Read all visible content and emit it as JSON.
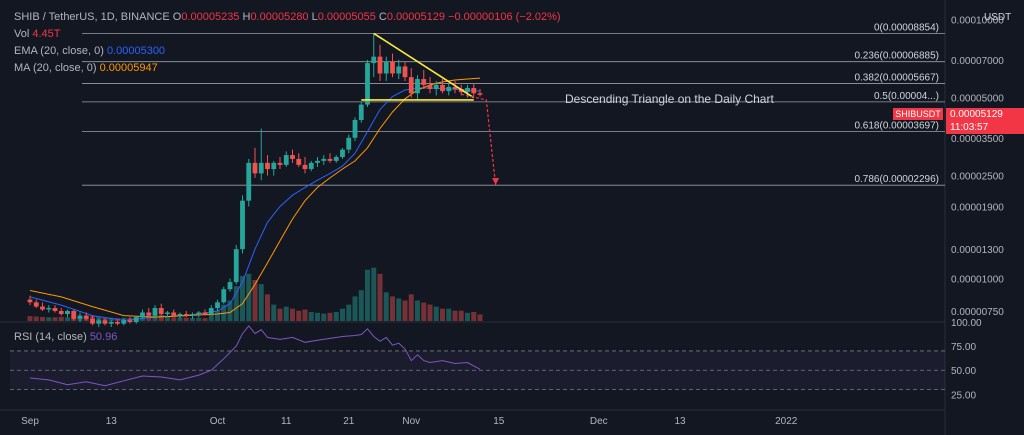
{
  "header": {
    "symbol": "SHIB / TetherUS, 1D, BINANCE",
    "ohlc": [
      {
        "k": "O",
        "v": "0.00005235"
      },
      {
        "k": "H",
        "v": "0.00005280"
      },
      {
        "k": "L",
        "v": "0.00005055"
      },
      {
        "k": "C",
        "v": "0.00005129"
      }
    ],
    "change": "−0.00000106 (−2.02%)",
    "volume_label": "Vol",
    "volume_value": "4.45T",
    "ema_label": "EMA (20, close, 0)",
    "ema_value": "0.00005300",
    "ma_label": "MA (20, close, 0)",
    "ma_value": "0.00005947",
    "rsi_label": "RSI (14, close)",
    "rsi_value": "50.96"
  },
  "currency": "USDT",
  "price_tag": "SHIBUSDT",
  "last_price": "0.00005129",
  "countdown": "11:03:57",
  "annotation": "Descending Triangle on the Daily Chart",
  "colors": {
    "up": "#26a69a",
    "down": "#ef5350",
    "ema": "#2962ff",
    "ma": "#ff9800",
    "rsi": "#7e57c2",
    "triangle": "#ffeb3b",
    "arrow": "#f23645",
    "background": "#131722",
    "fib": "#b2b5be"
  },
  "chart_data": {
    "type": "candlestick",
    "y_scale": "log",
    "price_axis": {
      "ticks": [
        "0.00010000",
        "0.00007000",
        "0.00005000",
        "0.00003500",
        "0.00002500",
        "0.00001900",
        "0.00001300",
        "0.00001000",
        "0.00000750"
      ],
      "values": [
        0.0001,
        7e-05,
        5e-05,
        3.5e-05,
        2.5e-05,
        1.9e-05,
        1.3e-05,
        1e-05,
        7.5e-06
      ]
    },
    "x_axis": {
      "ticks": [
        "Sep",
        "13",
        "Oct",
        "11",
        "21",
        "Nov",
        "15",
        "Dec",
        "13",
        "2022"
      ],
      "positions": [
        0,
        13,
        30,
        41,
        51,
        61,
        75,
        91,
        104,
        121
      ]
    },
    "fibonacci": [
      {
        "label": "0(0.00008854)",
        "level": 0,
        "price": 8.854e-05
      },
      {
        "label": "0.236(0.00006885)",
        "level": 0.236,
        "price": 6.885e-05
      },
      {
        "label": "0.382(0.00005667)",
        "level": 0.382,
        "price": 5.667e-05
      },
      {
        "label": "0.5(0.00004...)",
        "level": 0.5,
        "price": 4.817e-05
      },
      {
        "label": "0.618(0.00003697)",
        "level": 0.618,
        "price": 3.697e-05
      },
      {
        "label": "0.786(0.00002296)",
        "level": 0.786,
        "price": 2.296e-05
      }
    ],
    "candles": [
      {
        "d": 0,
        "o": 8.3e-06,
        "h": 8.6e-06,
        "l": 7.9e-06,
        "c": 8.1e-06,
        "v": 1.2
      },
      {
        "d": 1,
        "o": 8.1e-06,
        "h": 8.3e-06,
        "l": 7.7e-06,
        "c": 7.8e-06,
        "v": 1.1
      },
      {
        "d": 2,
        "o": 7.8e-06,
        "h": 8.1e-06,
        "l": 7.5e-06,
        "c": 7.6e-06,
        "v": 1.0
      },
      {
        "d": 3,
        "o": 7.6e-06,
        "h": 7.9e-06,
        "l": 7.4e-06,
        "c": 7.7e-06,
        "v": 0.9
      },
      {
        "d": 4,
        "o": 7.7e-06,
        "h": 7.9e-06,
        "l": 7.4e-06,
        "c": 7.5e-06,
        "v": 0.9
      },
      {
        "d": 5,
        "o": 7.5e-06,
        "h": 7.7e-06,
        "l": 7.2e-06,
        "c": 7.3e-06,
        "v": 1.0
      },
      {
        "d": 6,
        "o": 7.3e-06,
        "h": 7.6e-06,
        "l": 7.1e-06,
        "c": 7.5e-06,
        "v": 0.9
      },
      {
        "d": 7,
        "o": 7.5e-06,
        "h": 7.6e-06,
        "l": 6.9e-06,
        "c": 7e-06,
        "v": 1.2
      },
      {
        "d": 8,
        "o": 7e-06,
        "h": 7.4e-06,
        "l": 6.8e-06,
        "c": 7.2e-06,
        "v": 1.0
      },
      {
        "d": 9,
        "o": 7.2e-06,
        "h": 7.4e-06,
        "l": 6.9e-06,
        "c": 7e-06,
        "v": 0.8
      },
      {
        "d": 10,
        "o": 7e-06,
        "h": 7.2e-06,
        "l": 6.6e-06,
        "c": 6.7e-06,
        "v": 1.3
      },
      {
        "d": 11,
        "o": 6.7e-06,
        "h": 7e-06,
        "l": 6.5e-06,
        "c": 6.9e-06,
        "v": 1.0
      },
      {
        "d": 12,
        "o": 6.9e-06,
        "h": 7e-06,
        "l": 6.6e-06,
        "c": 6.7e-06,
        "v": 0.8
      },
      {
        "d": 13,
        "o": 6.7e-06,
        "h": 6.9e-06,
        "l": 6.5e-06,
        "c": 6.8e-06,
        "v": 0.8
      },
      {
        "d": 14,
        "o": 6.8e-06,
        "h": 6.9e-06,
        "l": 6.6e-06,
        "c": 6.7e-06,
        "v": 0.7
      },
      {
        "d": 15,
        "o": 6.7e-06,
        "h": 7e-06,
        "l": 6.6e-06,
        "c": 6.9e-06,
        "v": 0.8
      },
      {
        "d": 16,
        "o": 6.9e-06,
        "h": 7.1e-06,
        "l": 6.7e-06,
        "c": 6.8e-06,
        "v": 0.7
      },
      {
        "d": 17,
        "o": 6.8e-06,
        "h": 7.2e-06,
        "l": 6.7e-06,
        "c": 7.1e-06,
        "v": 1.0
      },
      {
        "d": 18,
        "o": 7.1e-06,
        "h": 7.6e-06,
        "l": 7e-06,
        "c": 7.4e-06,
        "v": 1.4
      },
      {
        "d": 19,
        "o": 7.4e-06,
        "h": 7.7e-06,
        "l": 7.1e-06,
        "c": 7.2e-06,
        "v": 1.3
      },
      {
        "d": 20,
        "o": 7.2e-06,
        "h": 7.9e-06,
        "l": 7.1e-06,
        "c": 7.7e-06,
        "v": 1.8
      },
      {
        "d": 21,
        "o": 7.7e-06,
        "h": 8e-06,
        "l": 7.2e-06,
        "c": 7.3e-06,
        "v": 1.5
      },
      {
        "d": 22,
        "o": 7.3e-06,
        "h": 7.5e-06,
        "l": 7.1e-06,
        "c": 7.4e-06,
        "v": 1.0
      },
      {
        "d": 23,
        "o": 7.4e-06,
        "h": 7.6e-06,
        "l": 7.1e-06,
        "c": 7.2e-06,
        "v": 0.9
      },
      {
        "d": 24,
        "o": 7.2e-06,
        "h": 7.4e-06,
        "l": 7e-06,
        "c": 7.3e-06,
        "v": 0.8
      },
      {
        "d": 25,
        "o": 7.3e-06,
        "h": 7.5e-06,
        "l": 7.1e-06,
        "c": 7.2e-06,
        "v": 0.8
      },
      {
        "d": 26,
        "o": 7.2e-06,
        "h": 7.4e-06,
        "l": 7e-06,
        "c": 7.3e-06,
        "v": 0.7
      },
      {
        "d": 27,
        "o": 7.3e-06,
        "h": 7.5e-06,
        "l": 7.1e-06,
        "c": 7.4e-06,
        "v": 0.8
      },
      {
        "d": 28,
        "o": 7.4e-06,
        "h": 7.6e-06,
        "l": 7.2e-06,
        "c": 7.3e-06,
        "v": 0.7
      },
      {
        "d": 29,
        "o": 7.3e-06,
        "h": 7.9e-06,
        "l": 7.2e-06,
        "c": 7.7e-06,
        "v": 1.5
      },
      {
        "d": 30,
        "o": 7.7e-06,
        "h": 8.3e-06,
        "l": 7.5e-06,
        "c": 8.1e-06,
        "v": 2.5
      },
      {
        "d": 31,
        "o": 8.1e-06,
        "h": 9.3e-06,
        "l": 8e-06,
        "c": 9.1e-06,
        "v": 4.0
      },
      {
        "d": 32,
        "o": 9.1e-06,
        "h": 1e-05,
        "l": 8.9e-06,
        "c": 9.7e-06,
        "v": 5.0
      },
      {
        "d": 33,
        "o": 9.7e-06,
        "h": 1.35e-05,
        "l": 9.5e-06,
        "c": 1.3e-05,
        "v": 8.5
      },
      {
        "d": 34,
        "o": 1.3e-05,
        "h": 2.1e-05,
        "l": 1.25e-05,
        "c": 2e-05,
        "v": 11.0
      },
      {
        "d": 35,
        "o": 2e-05,
        "h": 2.9e-05,
        "l": 1.9e-05,
        "c": 2.8e-05,
        "v": 11.5
      },
      {
        "d": 36,
        "o": 2.8e-05,
        "h": 3.2e-05,
        "l": 2.45e-05,
        "c": 2.55e-05,
        "v": 10.0
      },
      {
        "d": 37,
        "o": 2.55e-05,
        "h": 3.8e-05,
        "l": 2.4e-05,
        "c": 2.8e-05,
        "v": 9.0
      },
      {
        "d": 38,
        "o": 2.8e-05,
        "h": 3e-05,
        "l": 2.5e-05,
        "c": 2.65e-05,
        "v": 6.5
      },
      {
        "d": 39,
        "o": 2.65e-05,
        "h": 2.85e-05,
        "l": 2.5e-05,
        "c": 2.8e-05,
        "v": 4.0
      },
      {
        "d": 40,
        "o": 2.8e-05,
        "h": 2.95e-05,
        "l": 2.65e-05,
        "c": 2.75e-05,
        "v": 3.0
      },
      {
        "d": 41,
        "o": 2.75e-05,
        "h": 3.1e-05,
        "l": 2.7e-05,
        "c": 3e-05,
        "v": 3.5
      },
      {
        "d": 42,
        "o": 3e-05,
        "h": 3.15e-05,
        "l": 2.8e-05,
        "c": 2.9e-05,
        "v": 3.0
      },
      {
        "d": 43,
        "o": 2.9e-05,
        "h": 3.05e-05,
        "l": 2.7e-05,
        "c": 2.75e-05,
        "v": 2.5
      },
      {
        "d": 44,
        "o": 2.75e-05,
        "h": 2.95e-05,
        "l": 2.55e-05,
        "c": 2.65e-05,
        "v": 2.8
      },
      {
        "d": 45,
        "o": 2.65e-05,
        "h": 2.85e-05,
        "l": 2.6e-05,
        "c": 2.8e-05,
        "v": 2.2
      },
      {
        "d": 46,
        "o": 2.8e-05,
        "h": 2.95e-05,
        "l": 2.7e-05,
        "c": 2.85e-05,
        "v": 2.0
      },
      {
        "d": 47,
        "o": 2.85e-05,
        "h": 3e-05,
        "l": 2.75e-05,
        "c": 2.9e-05,
        "v": 1.8
      },
      {
        "d": 48,
        "o": 2.9e-05,
        "h": 3.05e-05,
        "l": 2.8e-05,
        "c": 2.85e-05,
        "v": 2.0
      },
      {
        "d": 49,
        "o": 2.85e-05,
        "h": 3e-05,
        "l": 2.8e-05,
        "c": 2.95e-05,
        "v": 2.2
      },
      {
        "d": 50,
        "o": 2.95e-05,
        "h": 3.2e-05,
        "l": 2.9e-05,
        "c": 3.15e-05,
        "v": 3.0
      },
      {
        "d": 51,
        "o": 3.15e-05,
        "h": 3.6e-05,
        "l": 3.05e-05,
        "c": 3.5e-05,
        "v": 4.0
      },
      {
        "d": 52,
        "o": 3.5e-05,
        "h": 4.2e-05,
        "l": 3.4e-05,
        "c": 4.1e-05,
        "v": 6.0
      },
      {
        "d": 53,
        "o": 4.1e-05,
        "h": 4.8e-05,
        "l": 4e-05,
        "c": 4.7e-05,
        "v": 7.5
      },
      {
        "d": 54,
        "o": 4.7e-05,
        "h": 7e-05,
        "l": 4.6e-05,
        "c": 6.8e-05,
        "v": 12.5
      },
      {
        "d": 55,
        "o": 6.8e-05,
        "h": 8.85e-05,
        "l": 6e-05,
        "c": 7.2e-05,
        "v": 13.0
      },
      {
        "d": 56,
        "o": 7.2e-05,
        "h": 8e-05,
        "l": 5.8e-05,
        "c": 6.2e-05,
        "v": 11.5
      },
      {
        "d": 57,
        "o": 6.2e-05,
        "h": 7.2e-05,
        "l": 5.8e-05,
        "c": 6.9e-05,
        "v": 7.0
      },
      {
        "d": 58,
        "o": 6.9e-05,
        "h": 7.4e-05,
        "l": 6e-05,
        "c": 6.2e-05,
        "v": 6.0
      },
      {
        "d": 59,
        "o": 6.2e-05,
        "h": 7e-05,
        "l": 5.9e-05,
        "c": 6.6e-05,
        "v": 5.5
      },
      {
        "d": 60,
        "o": 6.6e-05,
        "h": 6.9e-05,
        "l": 5.8e-05,
        "c": 6e-05,
        "v": 5.0
      },
      {
        "d": 61,
        "o": 6e-05,
        "h": 6.5e-05,
        "l": 5e-05,
        "c": 5.2e-05,
        "v": 6.5
      },
      {
        "d": 62,
        "o": 5.2e-05,
        "h": 6.1e-05,
        "l": 4.9e-05,
        "c": 5.9e-05,
        "v": 5.0
      },
      {
        "d": 63,
        "o": 5.9e-05,
        "h": 6.4e-05,
        "l": 5.4e-05,
        "c": 5.6e-05,
        "v": 4.5
      },
      {
        "d": 64,
        "o": 5.6e-05,
        "h": 6e-05,
        "l": 5.2e-05,
        "c": 5.4e-05,
        "v": 4.0
      },
      {
        "d": 65,
        "o": 5.4e-05,
        "h": 5.8e-05,
        "l": 5.1e-05,
        "c": 5.6e-05,
        "v": 3.5
      },
      {
        "d": 66,
        "o": 5.6e-05,
        "h": 5.9e-05,
        "l": 5.2e-05,
        "c": 5.3e-05,
        "v": 3.0
      },
      {
        "d": 67,
        "o": 5.3e-05,
        "h": 5.7e-05,
        "l": 5.1e-05,
        "c": 5.5e-05,
        "v": 3.0
      },
      {
        "d": 68,
        "o": 5.5e-05,
        "h": 5.8e-05,
        "l": 5.2e-05,
        "c": 5.4e-05,
        "v": 2.5
      },
      {
        "d": 69,
        "o": 5.4e-05,
        "h": 5.6e-05,
        "l": 5.1e-05,
        "c": 5.25e-05,
        "v": 2.5
      },
      {
        "d": 70,
        "o": 5.25e-05,
        "h": 5.6e-05,
        "l": 5e-05,
        "c": 5.45e-05,
        "v": 2.0
      },
      {
        "d": 71,
        "o": 5.45e-05,
        "h": 5.65e-05,
        "l": 5.05e-05,
        "c": 5.2e-05,
        "v": 2.2
      },
      {
        "d": 72,
        "o": 5.2e-05,
        "h": 5.4e-05,
        "l": 5.05e-05,
        "c": 5.13e-05,
        "v": 1.6
      }
    ],
    "ema20": [
      [
        0,
        8.5e-06
      ],
      [
        5,
        7.9e-06
      ],
      [
        10,
        7.2e-06
      ],
      [
        15,
        6.9e-06
      ],
      [
        20,
        7.1e-06
      ],
      [
        25,
        7.2e-06
      ],
      [
        30,
        7.5e-06
      ],
      [
        32,
        8e-06
      ],
      [
        34,
        9.7e-06
      ],
      [
        36,
        1.3e-05
      ],
      [
        38,
        1.65e-05
      ],
      [
        40,
        1.9e-05
      ],
      [
        42,
        2.1e-05
      ],
      [
        44,
        2.25e-05
      ],
      [
        46,
        2.4e-05
      ],
      [
        48,
        2.55e-05
      ],
      [
        50,
        2.72e-05
      ],
      [
        52,
        3.05e-05
      ],
      [
        54,
        3.7e-05
      ],
      [
        56,
        4.5e-05
      ],
      [
        58,
        5.05e-05
      ],
      [
        60,
        5.35e-05
      ],
      [
        62,
        5.45e-05
      ],
      [
        64,
        5.45e-05
      ],
      [
        66,
        5.42e-05
      ],
      [
        68,
        5.38e-05
      ],
      [
        70,
        5.35e-05
      ],
      [
        72,
        5.3e-05
      ]
    ],
    "ma20": [
      [
        0,
        9e-06
      ],
      [
        5,
        8.5e-06
      ],
      [
        10,
        7.8e-06
      ],
      [
        15,
        7.2e-06
      ],
      [
        20,
        7.1e-06
      ],
      [
        25,
        7.2e-06
      ],
      [
        30,
        7.3e-06
      ],
      [
        32,
        7.4e-06
      ],
      [
        34,
        8e-06
      ],
      [
        36,
        9.5e-06
      ],
      [
        38,
        1.15e-05
      ],
      [
        40,
        1.4e-05
      ],
      [
        42,
        1.7e-05
      ],
      [
        44,
        2e-05
      ],
      [
        46,
        2.25e-05
      ],
      [
        48,
        2.45e-05
      ],
      [
        50,
        2.65e-05
      ],
      [
        52,
        2.85e-05
      ],
      [
        54,
        3.2e-05
      ],
      [
        56,
        3.8e-05
      ],
      [
        58,
        4.4e-05
      ],
      [
        60,
        4.95e-05
      ],
      [
        62,
        5.35e-05
      ],
      [
        64,
        5.6e-05
      ],
      [
        66,
        5.75e-05
      ],
      [
        68,
        5.85e-05
      ],
      [
        70,
        5.9e-05
      ],
      [
        72,
        5.95e-05
      ]
    ],
    "rsi": {
      "ticks": [
        100,
        75,
        50,
        25
      ],
      "upper": 70,
      "lower": 30,
      "mid": 50,
      "points": [
        [
          0,
          42
        ],
        [
          3,
          40
        ],
        [
          6,
          35
        ],
        [
          9,
          38
        ],
        [
          12,
          34
        ],
        [
          15,
          39
        ],
        [
          18,
          44
        ],
        [
          21,
          43
        ],
        [
          24,
          40
        ],
        [
          27,
          45
        ],
        [
          29,
          50
        ],
        [
          31,
          62
        ],
        [
          33,
          75
        ],
        [
          34,
          88
        ],
        [
          35,
          96
        ],
        [
          36,
          88
        ],
        [
          37,
          92
        ],
        [
          38,
          84
        ],
        [
          40,
          82
        ],
        [
          42,
          84
        ],
        [
          44,
          79
        ],
        [
          46,
          81
        ],
        [
          48,
          83
        ],
        [
          50,
          85
        ],
        [
          52,
          86
        ],
        [
          53,
          87
        ],
        [
          54,
          93
        ],
        [
          55,
          85
        ],
        [
          56,
          80
        ],
        [
          57,
          84
        ],
        [
          58,
          76
        ],
        [
          59,
          78
        ],
        [
          60,
          72
        ],
        [
          61,
          60
        ],
        [
          62,
          66
        ],
        [
          63,
          60
        ],
        [
          64,
          58
        ],
        [
          66,
          60
        ],
        [
          68,
          57
        ],
        [
          70,
          58
        ],
        [
          72,
          51
        ]
      ]
    },
    "triangle": {
      "upper": [
        [
          55,
          8.85e-05
        ],
        [
          71,
          5e-05
        ]
      ],
      "lower": [
        [
          53,
          4.9e-05
        ],
        [
          71,
          4.9e-05
        ]
      ]
    },
    "projection": [
      [
        69,
        5.15e-05
      ],
      [
        73,
        4.9e-05
      ],
      [
        74.5,
        2.3e-05
      ]
    ]
  }
}
